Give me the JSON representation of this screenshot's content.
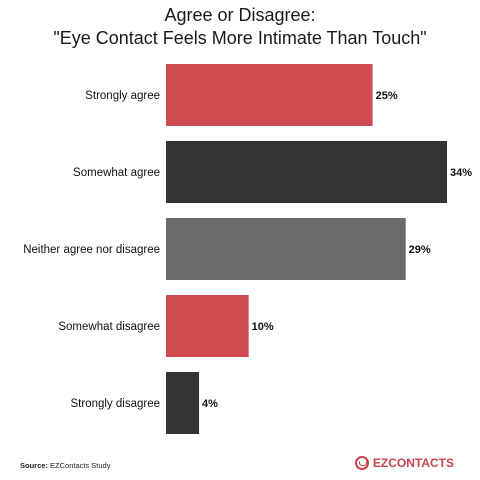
{
  "chart_data": {
    "type": "bar",
    "orientation": "horizontal",
    "title_line1": "Agree or Disagree:",
    "title_line2": "\"Eye Contact Feels More Intimate Than Touch\"",
    "categories": [
      "Strongly agree",
      "Somewhat agree",
      "Neither agree nor disagree",
      "Somewhat disagree",
      "Strongly disagree"
    ],
    "values": [
      25,
      34,
      29,
      10,
      4
    ],
    "value_labels": [
      "25%",
      "34%",
      "29%",
      "10%",
      "4%"
    ],
    "colors": [
      "#cf4b51",
      "#333333",
      "#6a6a6a",
      "#cf4b51",
      "#333333"
    ],
    "xlim": [
      0,
      34
    ],
    "grid": false,
    "legend": "none"
  },
  "footer": {
    "source_label": "Source:",
    "source_text": "EZContacts Study",
    "brand": "EZCONTACTS",
    "brand_color": "#c8434b",
    "brand_icon": "eye-logo-icon"
  }
}
